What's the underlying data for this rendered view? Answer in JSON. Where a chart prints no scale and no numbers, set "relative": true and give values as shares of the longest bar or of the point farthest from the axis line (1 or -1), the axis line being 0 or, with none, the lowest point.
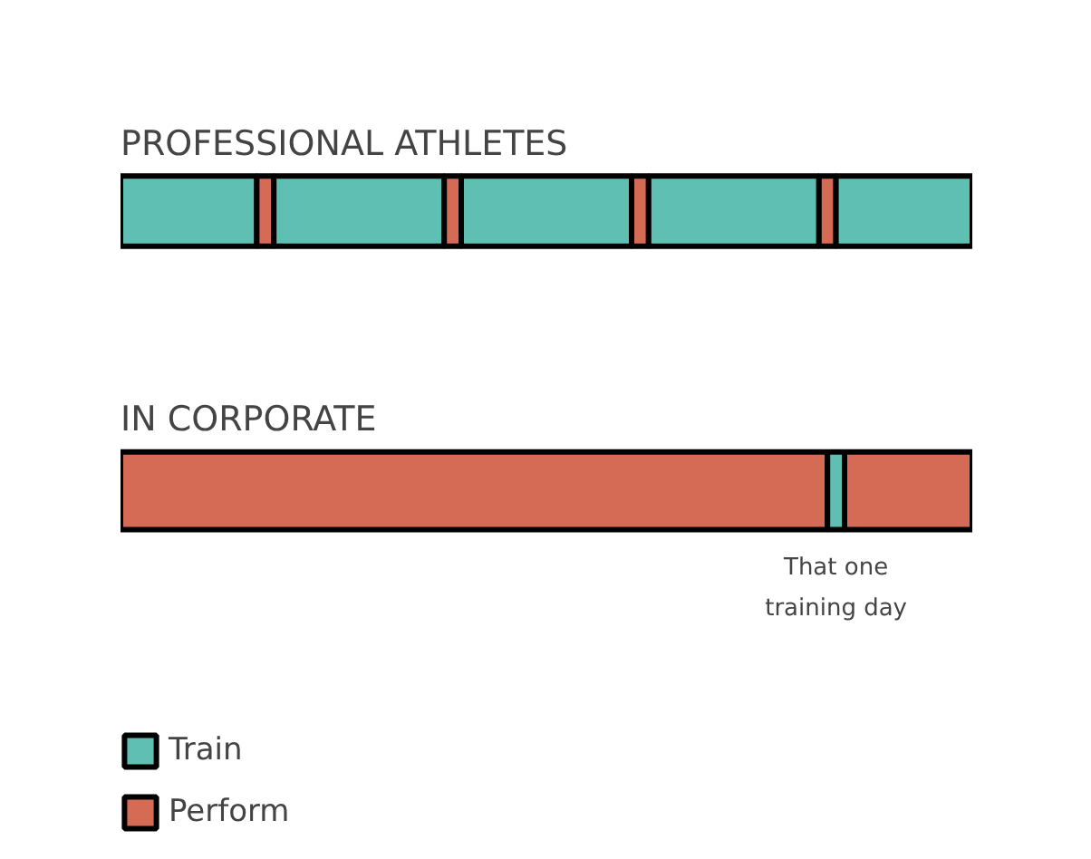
{
  "chart_data": [
    {
      "type": "bar",
      "title": "PROFESSIONAL ATHLETES",
      "orientation": "horizontal",
      "stacked": true,
      "relative": true,
      "categories": [
        null
      ],
      "series": [
        {
          "color": "#5fbfb2",
          "values": [
            0.16
          ]
        },
        {
          "color": "#d56b55",
          "values": [
            0.02
          ]
        },
        {
          "color": "#5fbfb2",
          "values": [
            0.2
          ]
        },
        {
          "color": "#d56b55",
          "values": [
            0.02
          ]
        },
        {
          "color": "#5fbfb2",
          "values": [
            0.2
          ]
        },
        {
          "color": "#d56b55",
          "values": [
            0.02
          ]
        },
        {
          "color": "#5fbfb2",
          "values": [
            0.2
          ]
        },
        {
          "color": "#d56b55",
          "values": [
            0.02
          ]
        },
        {
          "color": "#5fbfb2",
          "values": [
            0.16
          ]
        }
      ]
    },
    {
      "type": "bar",
      "title": "IN CORPORATE",
      "orientation": "horizontal",
      "stacked": true,
      "relative": true,
      "categories": [
        null
      ],
      "legend": "bottom left",
      "annotations": [
        "That one\ntraining day"
      ],
      "series": [
        {
          "name": "Perform",
          "color": "#d56b55",
          "values": [
            0.83
          ]
        },
        {
          "name": "Train",
          "color": "#5fbfb2",
          "values": [
            0.02
          ]
        },
        {
          "color": "#d56b55",
          "values": [
            0.15
          ]
        }
      ]
    }
  ]
}
